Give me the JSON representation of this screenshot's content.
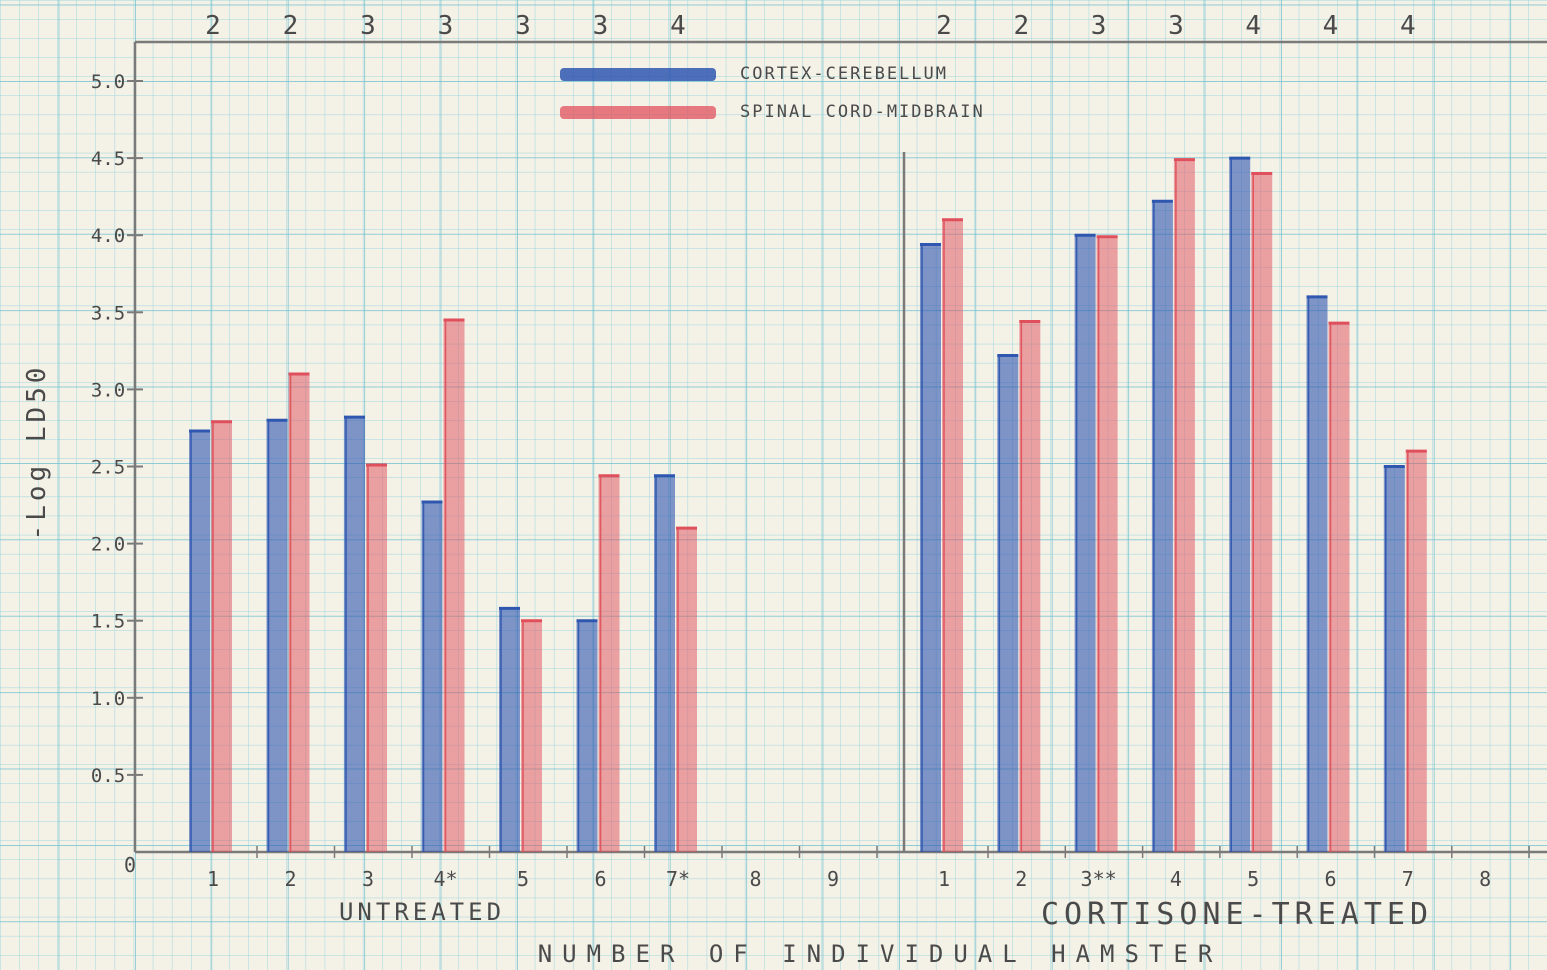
{
  "colors": {
    "paper": "#f4f1e6",
    "grid": "#8fd0dc",
    "axis": "#7a7a7a",
    "ink": "#4a4a4a",
    "blue": "#2f57b0",
    "red": "#e0505c"
  },
  "chart_data": {
    "type": "bar",
    "ylabel": "-Log LD50",
    "xlabel": "NUMBER OF INDIVIDUAL HAMSTER",
    "ylim": [
      0,
      5.0
    ],
    "yticks": [
      {
        "value": 0.5,
        "label": "0.5"
      },
      {
        "value": 1.0,
        "label": "1.0"
      },
      {
        "value": 1.5,
        "label": "1.5"
      },
      {
        "value": 2.0,
        "label": "2.0"
      },
      {
        "value": 2.5,
        "label": "2.5"
      },
      {
        "value": 3.0,
        "label": "3.0"
      },
      {
        "value": 3.5,
        "label": "3.5"
      },
      {
        "value": 4.0,
        "label": "4.0"
      },
      {
        "value": 4.5,
        "label": "4.5"
      },
      {
        "value": 5.0,
        "label": "5.0"
      }
    ],
    "origin_label": "0",
    "legend": [
      {
        "name": "CORTEX-CEREBELLUM",
        "color": "#2f57b0"
      },
      {
        "name": "SPINAL CORD-MIDBRAIN",
        "color": "#e0505c"
      }
    ],
    "groups": [
      {
        "label": "UNTREATED",
        "categories": [
          "1",
          "2",
          "3",
          "4*",
          "5",
          "6",
          "7*",
          "8",
          "9"
        ],
        "top_counts": [
          "2",
          "2",
          "3",
          "3",
          "3",
          "3",
          "4",
          "",
          ""
        ],
        "series": [
          {
            "name": "CORTEX-CEREBELLUM",
            "values": [
              2.73,
              2.8,
              2.82,
              2.27,
              1.58,
              1.5,
              2.44,
              null,
              null
            ]
          },
          {
            "name": "SPINAL CORD-MIDBRAIN",
            "values": [
              2.79,
              3.1,
              2.51,
              3.45,
              1.5,
              2.44,
              2.1,
              null,
              null
            ]
          }
        ]
      },
      {
        "label": "CORTISONE-TREATED",
        "categories": [
          "1",
          "2",
          "3**",
          "4",
          "5",
          "6",
          "7",
          "8"
        ],
        "top_counts": [
          "2",
          "2",
          "3",
          "3",
          "4",
          "4",
          "4",
          ""
        ],
        "series": [
          {
            "name": "CORTEX-CEREBELLUM",
            "values": [
              3.94,
              3.22,
              4.0,
              4.22,
              4.5,
              3.6,
              2.5,
              null
            ]
          },
          {
            "name": "SPINAL CORD-MIDBRAIN",
            "values": [
              4.1,
              3.44,
              3.99,
              4.49,
              4.4,
              3.43,
              2.6,
              null
            ]
          }
        ]
      }
    ]
  }
}
